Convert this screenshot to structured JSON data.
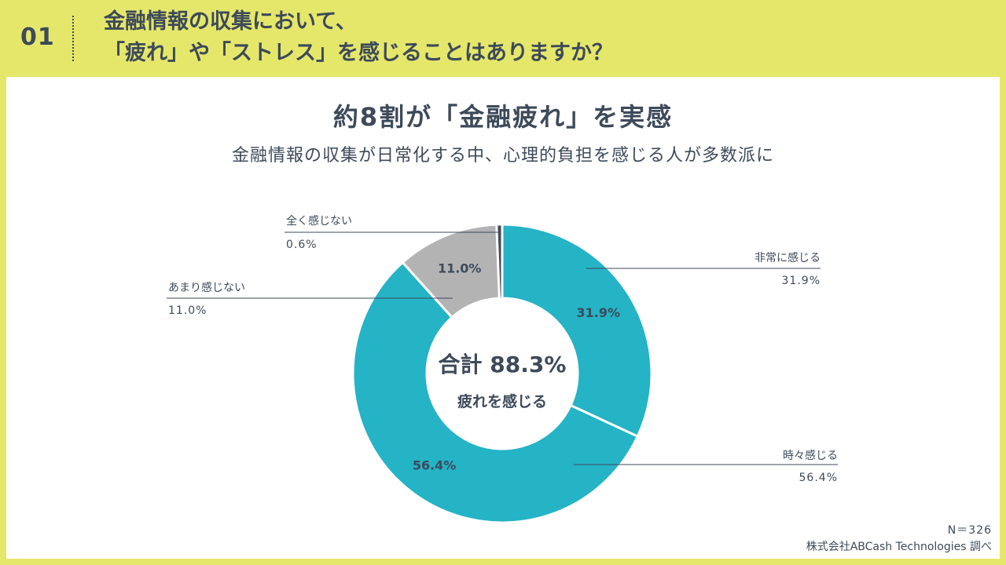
{
  "header": {
    "number": "01",
    "title_line1": "金融情報の収集において、",
    "title_line2": "「疲れ」や「ストレス」を感じることはありますか？"
  },
  "headline": "約8割が「金融疲れ」を実感",
  "subheadline": "金融情報の収集が日常化する中、心理的負担を感じる人が多数派に",
  "chart_data": {
    "type": "pie",
    "variant": "donut",
    "categories": [
      "非常に感じる",
      "時々感じる",
      "あまり感じない",
      "全く感じない"
    ],
    "values": [
      31.9,
      56.4,
      11.0,
      0.6
    ],
    "value_labels": [
      "31.9%",
      "56.4%",
      "11.0%",
      "0.6%"
    ],
    "colors": [
      "#25b3c6",
      "#25b3c6",
      "#b3b3b3",
      "#3d4a5a"
    ],
    "center_value": "合計 88.3%",
    "center_caption": "疲れを感じる",
    "legend": "callouts"
  },
  "footer": {
    "n": "N＝326",
    "source": "株式会社ABCash Technologies 調べ"
  },
  "colors": {
    "background": "#e5e76b",
    "panel": "#ffffff",
    "text": "#3d4a5a"
  }
}
